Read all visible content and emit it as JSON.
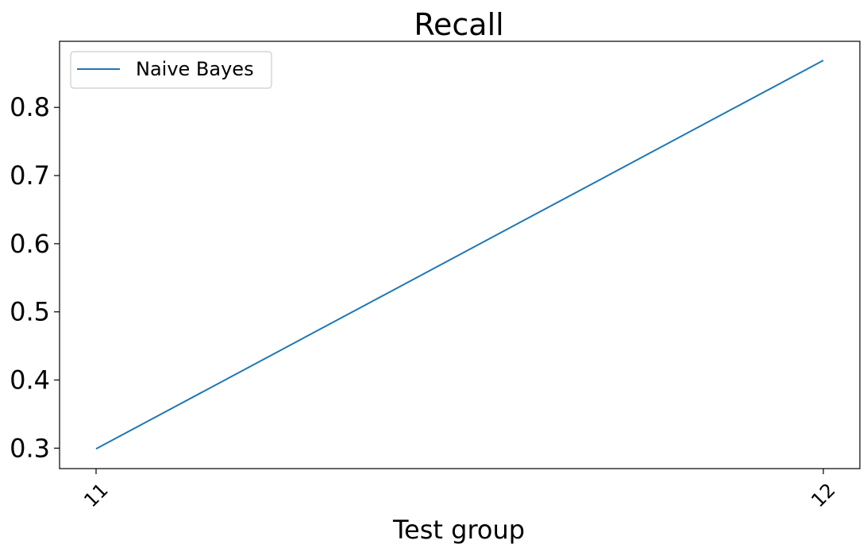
{
  "chart_data": {
    "type": "line",
    "title": "Recall",
    "xlabel": "Test group",
    "ylabel": "",
    "categories": [
      "11",
      "12"
    ],
    "series": [
      {
        "name": "Naive Bayes",
        "values": [
          0.299,
          0.869
        ],
        "color": "#1f77b4"
      }
    ],
    "yticks": [
      0.3,
      0.4,
      0.5,
      0.6,
      0.7,
      0.8
    ],
    "ytick_labels": [
      "0.3",
      "0.4",
      "0.5",
      "0.6",
      "0.7",
      "0.8"
    ],
    "ylim": [
      0.27,
      0.897
    ],
    "grid": false,
    "legend": "upper-left",
    "xtick_rotation": "45"
  }
}
